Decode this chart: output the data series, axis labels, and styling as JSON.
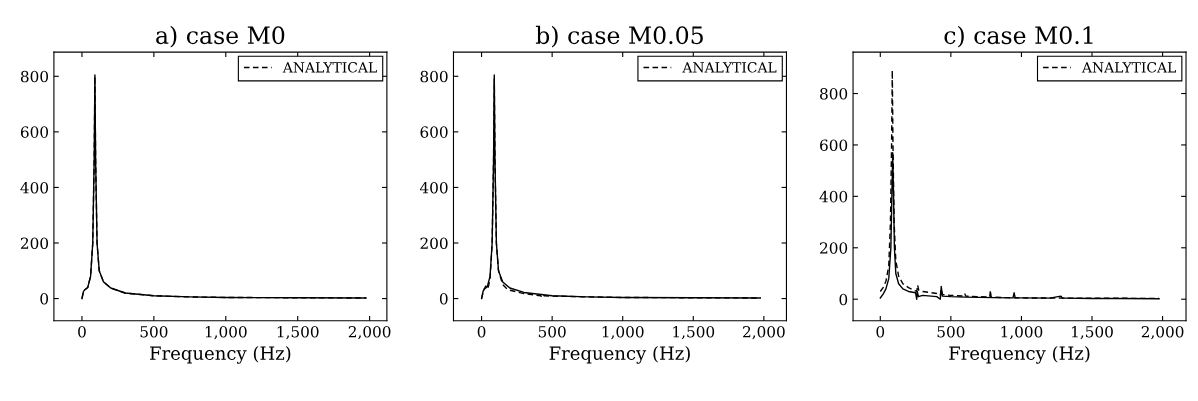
{
  "chart_data": [
    {
      "type": "line",
      "title": "a) case M0",
      "xlabel": "Frequency (Hz)",
      "xlim": [
        -195,
        2120
      ],
      "ylim": [
        -80,
        887
      ],
      "xticks": [
        0,
        500,
        {
          "value": 1000,
          "label": "1,000"
        },
        {
          "value": 1500,
          "label": "1,500"
        },
        {
          "value": 2000,
          "label": "2,000"
        }
      ],
      "yticks": [
        0,
        200,
        400,
        600,
        800
      ],
      "grid": false,
      "legend": "top right",
      "series": [
        {
          "color": "#000000",
          "line_style": "solid",
          "x": [
            0,
            10,
            20,
            40,
            60,
            75,
            85,
            90,
            95,
            105,
            120,
            150,
            200,
            300,
            500,
            750,
            1000,
            1500,
            1975
          ],
          "values": [
            0,
            25,
            32,
            40,
            80,
            200,
            500,
            805,
            500,
            200,
            100,
            60,
            38,
            20,
            10,
            6,
            4,
            3,
            2
          ]
        },
        {
          "name": "ANALYTICAL",
          "color": "#000000",
          "line_style": "dashed",
          "x": [
            0,
            10,
            20,
            40,
            60,
            75,
            85,
            90,
            95,
            105,
            120,
            150,
            200,
            300,
            500,
            750,
            1000,
            1500,
            1975
          ],
          "values": [
            0,
            25,
            32,
            40,
            80,
            200,
            500,
            800,
            500,
            200,
            100,
            60,
            38,
            20,
            10,
            6,
            4,
            3,
            2
          ]
        }
      ]
    },
    {
      "type": "line",
      "title": "b) case M0.05",
      "xlabel": "Frequency (Hz)",
      "xlim": [
        -199,
        2160
      ],
      "ylim": [
        -80,
        887
      ],
      "xticks": [
        0,
        500,
        {
          "value": 1000,
          "label": "1,000"
        },
        {
          "value": 1500,
          "label": "1,500"
        },
        {
          "value": 2000,
          "label": "2,000"
        }
      ],
      "yticks": [
        0,
        200,
        400,
        600,
        800
      ],
      "grid": false,
      "legend": "top right",
      "series": [
        {
          "color": "#000000",
          "line_style": "solid",
          "x": [
            0,
            10,
            20,
            40,
            60,
            75,
            85,
            90,
            95,
            105,
            120,
            150,
            200,
            300,
            500,
            750,
            1000,
            1500,
            1975
          ],
          "values": [
            0,
            25,
            35,
            42,
            80,
            200,
            500,
            805,
            500,
            200,
            100,
            60,
            38,
            22,
            10,
            6,
            4,
            3,
            2
          ]
        },
        {
          "name": "ANALYTICAL",
          "color": "#000000",
          "line_style": "dashed",
          "x": [
            0,
            15,
            30,
            45,
            60,
            75,
            85,
            90,
            95,
            105,
            120,
            150,
            180,
            200,
            300,
            420,
            430,
            440,
            500,
            750,
            1000,
            1500,
            1975
          ],
          "values": [
            0,
            30,
            45,
            35,
            70,
            200,
            500,
            790,
            500,
            200,
            100,
            50,
            35,
            30,
            18,
            10,
            3,
            10,
            9,
            6,
            4,
            3,
            2
          ]
        }
      ]
    },
    {
      "type": "line",
      "title": "c) case M0.1",
      "xlabel": "Frequency (Hz)",
      "xlim": [
        -193,
        2166
      ],
      "ylim": [
        -84,
        961
      ],
      "xticks": [
        0,
        500,
        {
          "value": 1000,
          "label": "1,000"
        },
        {
          "value": 1500,
          "label": "1,500"
        },
        {
          "value": 2000,
          "label": "2,000"
        }
      ],
      "yticks": [
        0,
        200,
        400,
        600,
        800
      ],
      "grid": false,
      "legend": "top right",
      "series": [
        {
          "color": "#000000",
          "line_style": "solid",
          "x": [
            0,
            20,
            40,
            60,
            75,
            82,
            88,
            94,
            100,
            110,
            130,
            160,
            200,
            250,
            258,
            262,
            270,
            300,
            400,
            425,
            432,
            440,
            500,
            600,
            700,
            800,
            940,
            948,
            956,
            1000,
            1200,
            1280,
            1290,
            1300,
            1500,
            1700,
            1975
          ],
          "values": [
            5,
            20,
            40,
            80,
            200,
            400,
            570,
            400,
            200,
            100,
            60,
            40,
            30,
            25,
            0,
            30,
            10,
            15,
            10,
            0,
            50,
            12,
            10,
            8,
            7,
            6,
            5,
            25,
            5,
            5,
            4,
            12,
            4,
            4,
            3,
            3,
            2
          ]
        },
        {
          "name": "ANALYTICAL",
          "color": "#000000",
          "line_style": "dashed",
          "x": [
            0,
            20,
            40,
            60,
            72,
            80,
            85,
            90,
            98,
            110,
            130,
            160,
            200,
            258,
            265,
            272,
            300,
            400,
            425,
            432,
            440,
            500,
            595,
            600,
            605,
            700,
            775,
            780,
            785,
            900,
            1000,
            1500,
            1975
          ],
          "values": [
            30,
            45,
            70,
            130,
            300,
            600,
            890,
            600,
            300,
            150,
            90,
            60,
            45,
            30,
            55,
            35,
            30,
            22,
            15,
            40,
            18,
            15,
            12,
            20,
            12,
            10,
            8,
            35,
            8,
            6,
            5,
            4,
            3
          ]
        }
      ]
    }
  ]
}
